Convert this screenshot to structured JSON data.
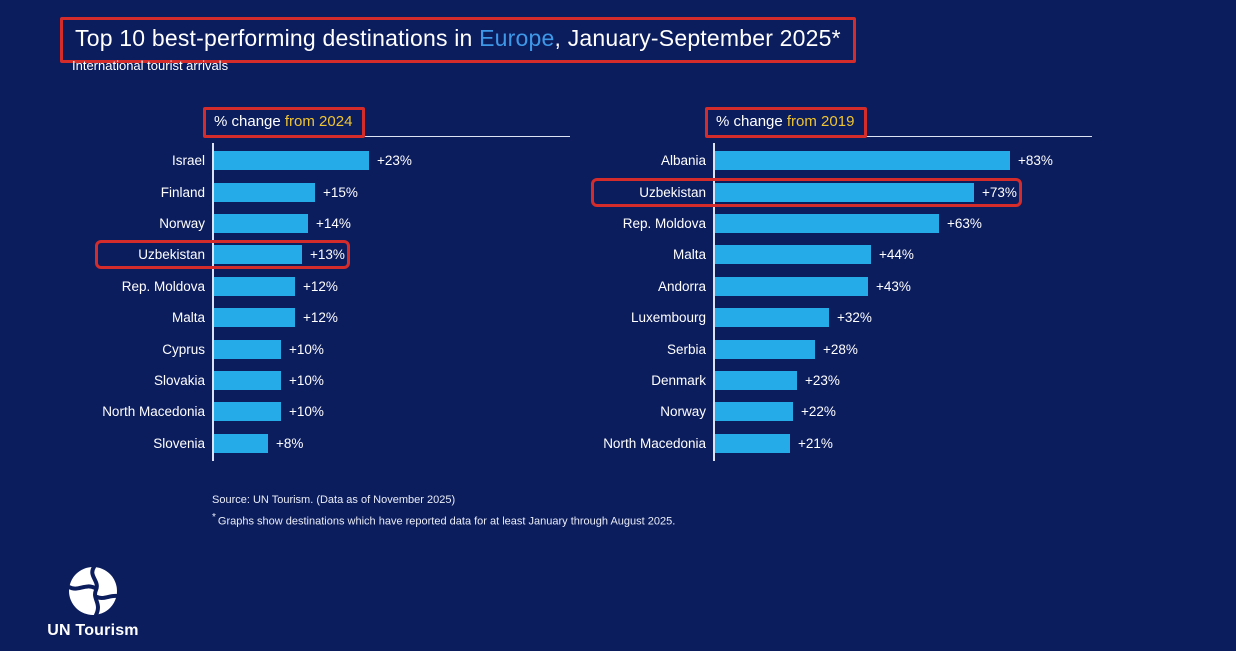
{
  "header": {
    "title_prefix": "Top 10 best-performing destinations in ",
    "title_region": "Europe",
    "title_suffix": ", January-September 2025*",
    "subtitle": "International tourist arrivals"
  },
  "colors": {
    "background_navy": "#0C1D5E",
    "bar_cyan": "#25ACE8",
    "highlight_red": "#D42B2B",
    "accent_blue": "#3E98E8",
    "accent_yellow": "#EFC431"
  },
  "chart_data": [
    {
      "type": "bar",
      "orientation": "horizontal",
      "title": "% change from 2024",
      "title_prefix": "% change ",
      "title_highlight": "from 2024",
      "categories": [
        "Israel",
        "Finland",
        "Norway",
        "Uzbekistan",
        "Rep. Moldova",
        "Malta",
        "Cyprus",
        "Slovakia",
        "North Macedonia",
        "Slovenia"
      ],
      "values": [
        23,
        15,
        14,
        13,
        12,
        12,
        10,
        10,
        10,
        8
      ],
      "value_labels": [
        "+23%",
        "+15%",
        "+14%",
        "+13%",
        "+12%",
        "+12%",
        "+10%",
        "+10%",
        "+10%",
        "+8%"
      ],
      "highlighted_category": "Uzbekistan",
      "xlim": [
        0,
        23
      ],
      "grid": false,
      "legend": false
    },
    {
      "type": "bar",
      "orientation": "horizontal",
      "title": "% change from 2019",
      "title_prefix": "% change ",
      "title_highlight": "from 2019",
      "categories": [
        "Albania",
        "Uzbekistan",
        "Rep. Moldova",
        "Malta",
        "Andorra",
        "Luxembourg",
        "Serbia",
        "Denmark",
        "Norway",
        "North Macedonia"
      ],
      "values": [
        83,
        73,
        63,
        44,
        43,
        32,
        28,
        23,
        22,
        21
      ],
      "value_labels": [
        "+83%",
        "+73%",
        "+63%",
        "+44%",
        "+43%",
        "+32%",
        "+28%",
        "+23%",
        "+22%",
        "+21%"
      ],
      "highlighted_category": "Uzbekistan",
      "xlim": [
        0,
        83
      ],
      "grid": false,
      "legend": false
    }
  ],
  "footer": {
    "source_line": "Source: UN Tourism. (Data as of November 2025)",
    "note_marker": "*",
    "note_line": "Graphs show destinations which have reported data for at least January through August 2025.",
    "logo_text": "UN Tourism"
  }
}
